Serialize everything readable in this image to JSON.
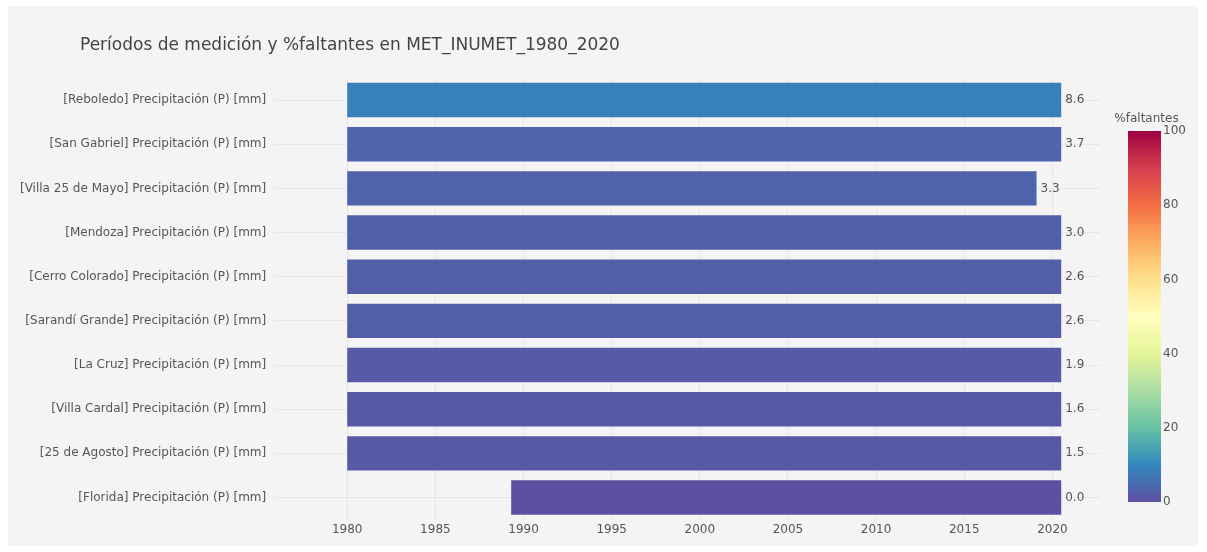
{
  "chart_data": {
    "type": "bar",
    "orientation": "horizontal",
    "title": "Períodos de medición y %faltantes en MET_INUMET_1980_2020",
    "categories": [
      "[Reboledo] Precipitación (P) [mm]",
      "[San Gabriel] Precipitación (P) [mm]",
      "[Villa 25 de Mayo] Precipitación (P) [mm]",
      "[Mendoza] Precipitación (P) [mm]",
      "[Cerro Colorado] Precipitación (P) [mm]",
      "[Sarandí Grande] Precipitación (P) [mm]",
      "[La Cruz] Precipitación (P) [mm]",
      "[Villa Cardal] Precipitación (P) [mm]",
      "[25 de Agosto] Precipitación (P) [mm]",
      "[Florida] Precipitación (P) [mm]"
    ],
    "base": [
      1980,
      1980,
      1980,
      1980,
      1980,
      1980,
      1980,
      1980,
      1980,
      1989.3
    ],
    "values": [
      40.5,
      40.5,
      39.1,
      40.5,
      40.5,
      40.5,
      40.5,
      40.5,
      40.5,
      31.2
    ],
    "cvalues": [
      8.6,
      3.7,
      3.3,
      3.0,
      2.6,
      2.6,
      1.9,
      1.6,
      1.5,
      0.0
    ],
    "annotations": [
      "8.6",
      "3.7",
      "3.3",
      "3.0",
      "2.6",
      "2.6",
      "1.9",
      "1.6",
      "1.5",
      "0.0"
    ],
    "clabel": "%faltantes",
    "clim": [
      0,
      100
    ],
    "cticks": [
      0,
      20,
      40,
      60,
      80,
      100
    ],
    "xlim": [
      1977.9,
      2022.7
    ],
    "xticks": [
      1980,
      1985,
      1990,
      1995,
      2000,
      2005,
      2010,
      2015,
      2020
    ],
    "grid": true,
    "legend": false
  }
}
